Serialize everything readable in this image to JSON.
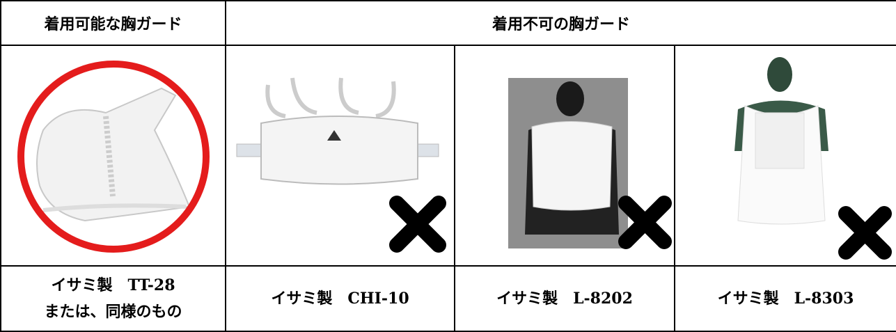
{
  "table": {
    "header": [
      "着用可能な胸ガード",
      "着用不可の胸ガード"
    ],
    "captions": [
      [
        "イサミ製　TT-28",
        "または、同様のもの"
      ],
      [
        "イサミ製　CHI-10"
      ],
      [
        "イサミ製　L-8202"
      ],
      [
        "イサミ製　L-8303"
      ]
    ]
  }
}
